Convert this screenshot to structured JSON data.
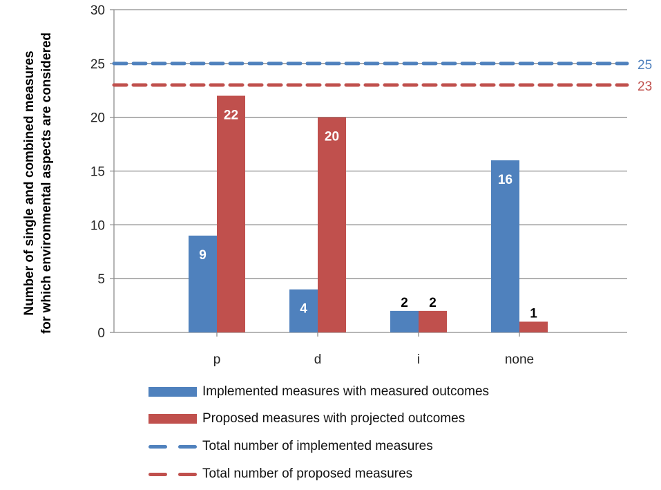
{
  "chart_data": {
    "type": "bar",
    "title": "",
    "xlabel": "",
    "ylabel": "Number of single and combined measures for which environmental aspects are considered",
    "ylabel_lines": [
      "Number of single and combined measures",
      "for which environmental aspects are considered"
    ],
    "categories": [
      "p",
      "d",
      "i",
      "none"
    ],
    "series": [
      {
        "name": "Implemented measures with measured outcomes",
        "color": "#4F81BD",
        "values": [
          9,
          4,
          2,
          16
        ]
      },
      {
        "name": "Proposed measures with projected outcomes",
        "color": "#C0504D",
        "values": [
          22,
          20,
          2,
          1
        ]
      }
    ],
    "reference_lines": [
      {
        "name": "Total number of implemented measures",
        "value": 25,
        "color": "#4F81BD",
        "style": "dashed",
        "label": "25"
      },
      {
        "name": "Total number of proposed measures",
        "value": 23,
        "color": "#C0504D",
        "style": "dashed",
        "label": "23"
      }
    ],
    "ylim": [
      0,
      30
    ],
    "yticks": [
      0,
      5,
      10,
      15,
      20,
      25,
      30
    ],
    "grid": true,
    "legend_position": "bottom"
  },
  "legend": {
    "items": [
      {
        "label": "Implemented measures with measured outcomes",
        "kind": "bar",
        "color": "#4F81BD"
      },
      {
        "label": "Proposed measures with projected outcomes",
        "kind": "bar",
        "color": "#C0504D"
      },
      {
        "label": "Total number of implemented measures",
        "kind": "dash",
        "color": "#4F81BD"
      },
      {
        "label": "Total number of proposed measures",
        "kind": "dash",
        "color": "#C0504D"
      }
    ]
  }
}
